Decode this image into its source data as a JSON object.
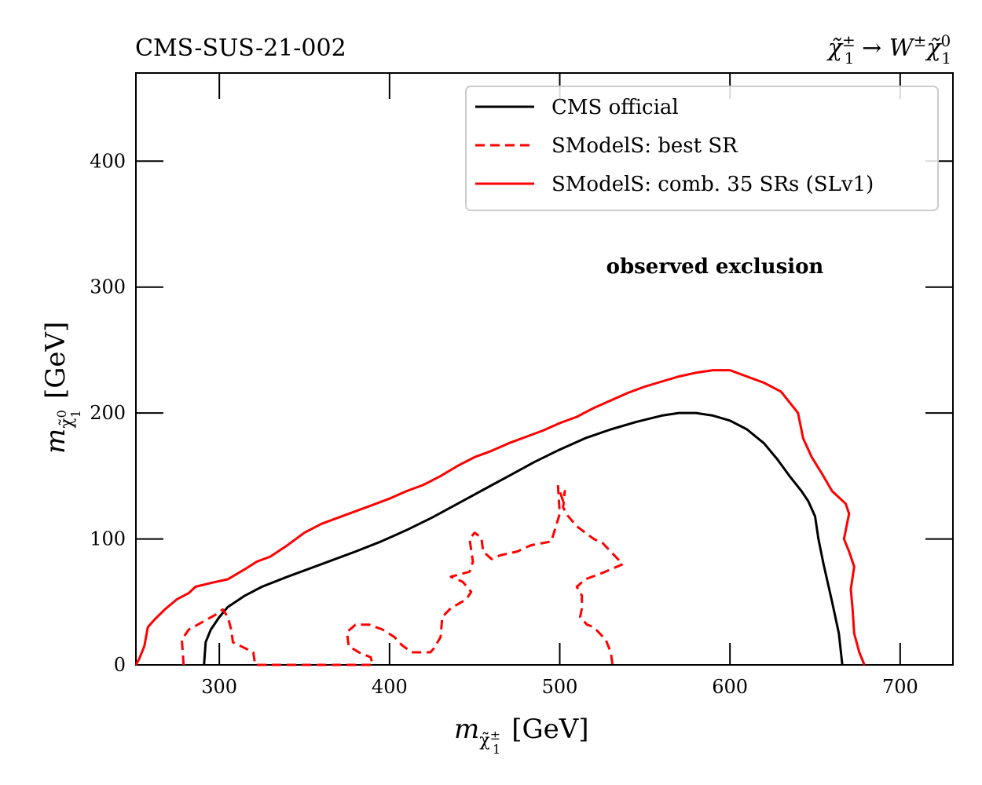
{
  "chart_data": {
    "type": "line",
    "title_left": "CMS-SUS-21-002",
    "title_right": {
      "prefix": "χ̃",
      "sup1": "±",
      "sub1": "1",
      "arrow": " → W",
      "sup2": "±",
      "chi2": "χ̃",
      "sup3": "0",
      "sub3": "1"
    },
    "xlabel": {
      "m": "m",
      "sub": "χ̃",
      "subsup": "±",
      "subsub": "1",
      "unit": "[GeV]"
    },
    "ylabel": {
      "m": "m",
      "sub": "χ̃",
      "subsup": "0",
      "subsub": "1",
      "unit": "[GeV]"
    },
    "xlim": [
      251,
      731
    ],
    "ylim": [
      0,
      470
    ],
    "xticks": [
      300,
      400,
      500,
      600,
      700
    ],
    "yticks": [
      0,
      100,
      200,
      300,
      400
    ],
    "xtick_labels": [
      "300",
      "400",
      "500",
      "600",
      "700"
    ],
    "ytick_labels": [
      "0",
      "100",
      "200",
      "300",
      "400"
    ],
    "annotation": "observed exclusion",
    "legend_position": "top-right",
    "series": [
      {
        "name": "CMS official",
        "color": "#000000",
        "style": "solid",
        "points": [
          [
            291,
            0
          ],
          [
            292,
            18
          ],
          [
            295,
            28
          ],
          [
            300,
            38
          ],
          [
            305,
            46
          ],
          [
            315,
            55
          ],
          [
            325,
            62
          ],
          [
            340,
            70
          ],
          [
            360,
            80
          ],
          [
            380,
            90
          ],
          [
            395,
            98
          ],
          [
            410,
            107
          ],
          [
            425,
            117
          ],
          [
            440,
            128
          ],
          [
            455,
            139
          ],
          [
            470,
            150
          ],
          [
            485,
            161
          ],
          [
            500,
            171
          ],
          [
            515,
            180
          ],
          [
            530,
            187
          ],
          [
            545,
            193
          ],
          [
            560,
            198
          ],
          [
            570,
            200
          ],
          [
            580,
            200
          ],
          [
            590,
            198
          ],
          [
            600,
            194
          ],
          [
            610,
            187
          ],
          [
            620,
            176
          ],
          [
            628,
            163
          ],
          [
            635,
            150
          ],
          [
            642,
            138
          ],
          [
            646,
            130
          ],
          [
            650,
            118
          ],
          [
            652,
            100
          ],
          [
            655,
            80
          ],
          [
            660,
            50
          ],
          [
            664,
            25
          ],
          [
            666,
            0
          ]
        ]
      },
      {
        "name": "SModelS: best SR",
        "color": "#ff0000",
        "style": "dashed",
        "points": [
          [
            279,
            0
          ],
          [
            278,
            20
          ],
          [
            282,
            28
          ],
          [
            290,
            34
          ],
          [
            298,
            40
          ],
          [
            302,
            44
          ],
          [
            305,
            38
          ],
          [
            307,
            28
          ],
          [
            308,
            18
          ],
          [
            320,
            10
          ],
          [
            321,
            0
          ],
          [
            340,
            0
          ],
          [
            365,
            0
          ],
          [
            390,
            0
          ],
          [
            389,
            6
          ],
          [
            382,
            10
          ],
          [
            376,
            15
          ],
          [
            375,
            26
          ],
          [
            380,
            32
          ],
          [
            388,
            32
          ],
          [
            396,
            28
          ],
          [
            403,
            22
          ],
          [
            407,
            16
          ],
          [
            413,
            10
          ],
          [
            424,
            10
          ],
          [
            426,
            13
          ],
          [
            430,
            22
          ],
          [
            431,
            38
          ],
          [
            436,
            45
          ],
          [
            445,
            52
          ],
          [
            448,
            58
          ],
          [
            443,
            66
          ],
          [
            436,
            70
          ],
          [
            447,
            74
          ],
          [
            449,
            82
          ],
          [
            447,
            100
          ],
          [
            450,
            105
          ],
          [
            454,
            101
          ],
          [
            455,
            90
          ],
          [
            460,
            84
          ],
          [
            465,
            87
          ],
          [
            475,
            90
          ],
          [
            483,
            95
          ],
          [
            495,
            98
          ],
          [
            500,
            120
          ],
          [
            499,
            142
          ],
          [
            502,
            130
          ],
          [
            503,
            138
          ],
          [
            502,
            125
          ],
          [
            505,
            118
          ],
          [
            510,
            110
          ],
          [
            520,
            100
          ],
          [
            525,
            97
          ],
          [
            537,
            80
          ],
          [
            525,
            73
          ],
          [
            515,
            68
          ],
          [
            510,
            62
          ],
          [
            513,
            55
          ],
          [
            513,
            45
          ],
          [
            512,
            38
          ],
          [
            516,
            32
          ],
          [
            520,
            30
          ],
          [
            527,
            20
          ],
          [
            530,
            10
          ],
          [
            531,
            0
          ]
        ]
      },
      {
        "name": "SModelS: comb. 35 SRs (SLv1)",
        "color": "#ff0000",
        "style": "solid",
        "points": [
          [
            251,
            0
          ],
          [
            253,
            5
          ],
          [
            256,
            15
          ],
          [
            258,
            30
          ],
          [
            262,
            36
          ],
          [
            268,
            44
          ],
          [
            275,
            52
          ],
          [
            282,
            57
          ],
          [
            286,
            62
          ],
          [
            295,
            65
          ],
          [
            305,
            68
          ],
          [
            315,
            76
          ],
          [
            322,
            82
          ],
          [
            330,
            86
          ],
          [
            340,
            95
          ],
          [
            350,
            105
          ],
          [
            360,
            112
          ],
          [
            370,
            117
          ],
          [
            380,
            122
          ],
          [
            390,
            127
          ],
          [
            400,
            132
          ],
          [
            410,
            138
          ],
          [
            420,
            143
          ],
          [
            430,
            150
          ],
          [
            440,
            158
          ],
          [
            450,
            165
          ],
          [
            460,
            170
          ],
          [
            470,
            176
          ],
          [
            480,
            181
          ],
          [
            490,
            186
          ],
          [
            500,
            192
          ],
          [
            510,
            197
          ],
          [
            520,
            204
          ],
          [
            530,
            210
          ],
          [
            540,
            216
          ],
          [
            550,
            221
          ],
          [
            560,
            225
          ],
          [
            570,
            229
          ],
          [
            580,
            232
          ],
          [
            590,
            234
          ],
          [
            600,
            234
          ],
          [
            610,
            229
          ],
          [
            620,
            224
          ],
          [
            630,
            217
          ],
          [
            640,
            200
          ],
          [
            643,
            180
          ],
          [
            648,
            165
          ],
          [
            654,
            152
          ],
          [
            660,
            138
          ],
          [
            668,
            128
          ],
          [
            670,
            120
          ],
          [
            667,
            100
          ],
          [
            670,
            90
          ],
          [
            673,
            78
          ],
          [
            671,
            60
          ],
          [
            672,
            45
          ],
          [
            673,
            25
          ],
          [
            676,
            10
          ],
          [
            679,
            0
          ]
        ]
      }
    ]
  }
}
